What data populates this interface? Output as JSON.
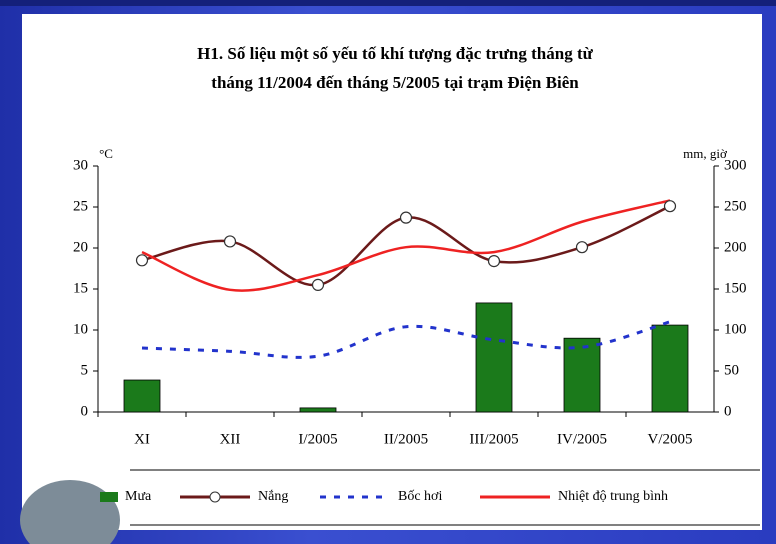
{
  "chart_data": {
    "type": "combo",
    "title": [
      "H1. Số liệu một số yếu tố khí tượng đặc trưng tháng từ",
      "tháng 11/2004 đến tháng 5/2005 tại trạm Điện Biên"
    ],
    "ylabel": "°C",
    "y2label": "mm, giờ",
    "categories": [
      "XI",
      "XII",
      "I/2005",
      "II/2005",
      "III/2005",
      "IV/2005",
      "V/2005"
    ],
    "ylim": [
      0,
      30
    ],
    "yticks": [
      0,
      5,
      10,
      15,
      20,
      25,
      30
    ],
    "y2lim": [
      0,
      300
    ],
    "y2ticks": [
      0,
      50,
      100,
      150,
      200,
      250,
      300
    ],
    "series": [
      {
        "name": "Mưa",
        "type": "bar",
        "axis": "y2",
        "color": "#1b7a1b",
        "values": [
          39,
          0,
          5,
          0,
          133,
          90,
          106
        ]
      },
      {
        "name": "Nắng",
        "type": "line",
        "axis": "y2",
        "color": "#6b1a1a",
        "values": [
          185,
          208,
          155,
          237,
          184,
          201,
          251
        ]
      },
      {
        "name": "Bốc hơi",
        "type": "dashed",
        "axis": "y2",
        "color": "#2233cc",
        "values": [
          78,
          74,
          68,
          104,
          88,
          79,
          110
        ]
      },
      {
        "name": "Nhiệt độ trung bình",
        "type": "line",
        "axis": "y",
        "color": "#ee2222",
        "values": [
          19.5,
          14.9,
          16.7,
          20.1,
          19.5,
          23.2,
          25.8
        ]
      }
    ]
  }
}
